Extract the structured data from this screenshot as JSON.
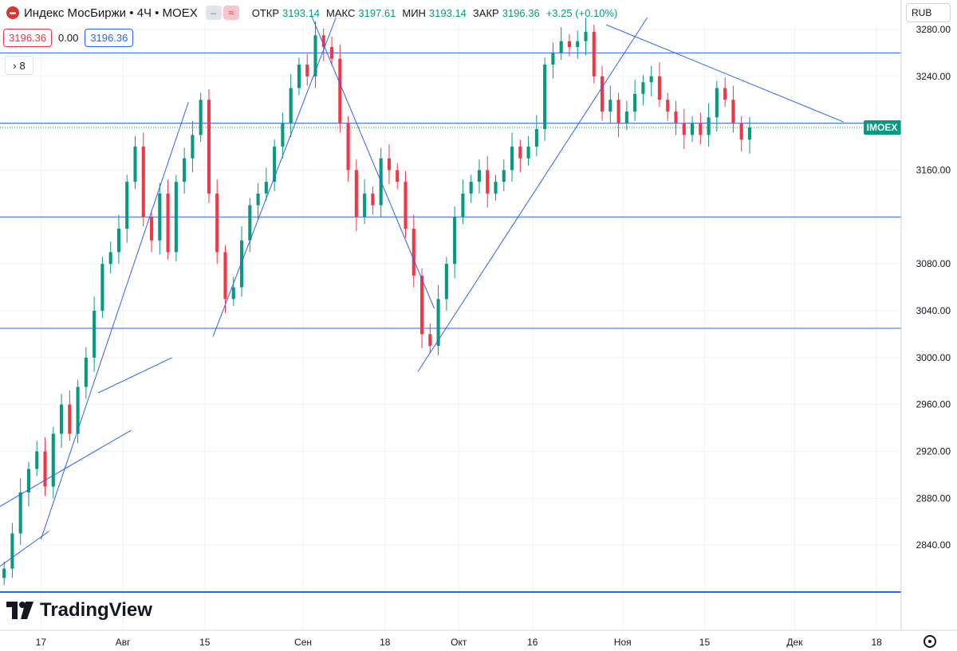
{
  "header": {
    "title": "Индекс МосБиржи • 4Ч • MOEX",
    "open_label": "ОТКР",
    "open_value": "3193.14",
    "high_label": "МАКС",
    "high_value": "3197.61",
    "low_label": "МИН",
    "low_value": "3193.14",
    "close_label": "ЗАКР",
    "close_value": "3196.36",
    "change": "+3.25 (+0.10%)",
    "chip_a": "–",
    "chip_b": "≈"
  },
  "price_row": {
    "bid": "3196.36",
    "spread": "0.00",
    "ask": "3196.36"
  },
  "indicator_toggle": {
    "icon": "chevron-right-icon",
    "count": "8"
  },
  "currency": "RUB",
  "brand": "TradingView",
  "colors": {
    "up": "#089981",
    "down": "#f23645",
    "line": "#2962ff",
    "text": "#131722",
    "grid": "#f0f3fa"
  },
  "chart_data": {
    "type": "candlestick",
    "symbol": "IMOEX",
    "timeframe": "4Ч",
    "ylim": [
      2800,
      3316
    ],
    "y_ticks": [
      2840,
      2880,
      2920,
      2960,
      3000,
      3040,
      3080,
      3160,
      3240,
      3280
    ],
    "y_tick_labels": [
      "2840.00",
      "2880.00",
      "2920.00",
      "2960.00",
      "3000.00",
      "3040.00",
      "3080.00",
      "3160.00",
      "3240.00",
      "3280.00"
    ],
    "x_ticks": [
      {
        "label": "17",
        "i": 5
      },
      {
        "label": "Авг",
        "i": 15
      },
      {
        "label": "15",
        "i": 25
      },
      {
        "label": "Сен",
        "i": 37
      },
      {
        "label": "18",
        "i": 47
      },
      {
        "label": "Окт",
        "i": 56
      },
      {
        "label": "16",
        "i": 65
      },
      {
        "label": "Ноя",
        "i": 76
      },
      {
        "label": "15",
        "i": 86
      },
      {
        "label": "Дек",
        "i": 97
      },
      {
        "label": "18",
        "i": 107
      }
    ],
    "x_range": [
      0,
      110
    ],
    "horizontal_levels": [
      {
        "price": 3260,
        "label": "3260.00"
      },
      {
        "price": 3200,
        "label": "3200.00"
      },
      {
        "price": 3120,
        "label": "3120.00"
      },
      {
        "price": 3025,
        "label": "3025.00"
      },
      {
        "price": 2800,
        "label": "2800.00"
      }
    ],
    "last_price": {
      "price": 3196.36,
      "label": "3196.36",
      "tag": "IMOEX"
    },
    "closes": [
      2820,
      2850,
      2885,
      2905,
      2920,
      2890,
      2935,
      2960,
      2935,
      2975,
      3000,
      3040,
      3080,
      3090,
      3110,
      3150,
      3180,
      3120,
      3100,
      3140,
      3090,
      3150,
      3170,
      3190,
      3220,
      3140,
      3090,
      3050,
      3060,
      3100,
      3130,
      3140,
      3150,
      3180,
      3200,
      3230,
      3250,
      3240,
      3275,
      3265,
      3255,
      3200,
      3160,
      3120,
      3140,
      3130,
      3170,
      3160,
      3150,
      3110,
      3070,
      3020,
      3010,
      3050,
      3080,
      3120,
      3140,
      3150,
      3160,
      3140,
      3150,
      3160,
      3180,
      3170,
      3180,
      3195,
      3250,
      3260,
      3270,
      3265,
      3270,
      3278,
      3240,
      3210,
      3220,
      3200,
      3210,
      3225,
      3235,
      3240,
      3220,
      3210,
      3200,
      3190,
      3200,
      3190,
      3205,
      3230,
      3220,
      3200,
      3186,
      3196.36
    ],
    "trend_lines": [
      {
        "p1": [
          -2,
          2812
        ],
        "p2": [
          6,
          2852
        ]
      },
      {
        "p1": [
          -2,
          2865
        ],
        "p2": [
          16,
          2938
        ]
      },
      {
        "p1": [
          5,
          2845
        ],
        "p2": [
          23,
          3218
        ]
      },
      {
        "p1": [
          12,
          2970
        ],
        "p2": [
          21,
          3000
        ]
      },
      {
        "p1": [
          26,
          3018
        ],
        "p2": [
          41,
          3290
        ]
      },
      {
        "p1": [
          38,
          3292
        ],
        "p2": [
          53,
          3042
        ]
      },
      {
        "p1": [
          51,
          2988
        ],
        "p2": [
          79,
          3290
        ]
      },
      {
        "p1": [
          74,
          3284
        ],
        "p2": [
          103,
          3201
        ]
      }
    ]
  }
}
